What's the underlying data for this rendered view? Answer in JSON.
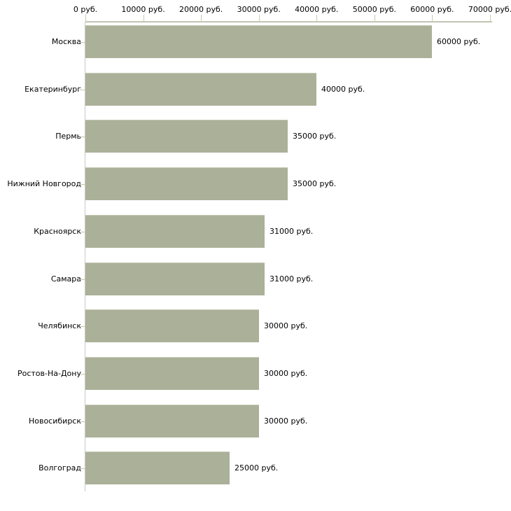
{
  "chart_data": {
    "type": "bar",
    "orientation": "horizontal",
    "title": "",
    "xlabel": "",
    "ylabel": "",
    "grid": false,
    "legend": false,
    "bar_color": "#abb199",
    "categories": [
      "Москва",
      "Екатеринбург",
      "Пермь",
      "Нижний Новгород",
      "Красноярск",
      "Самара",
      "Челябинск",
      "Ростов-На-Дону",
      "Новосибирск",
      "Волгоград"
    ],
    "values": [
      60000,
      40000,
      35000,
      35000,
      31000,
      31000,
      30000,
      30000,
      30000,
      25000
    ],
    "value_labels": [
      "60000 руб.",
      "40000 руб.",
      "35000 руб.",
      "35000 руб.",
      "31000 руб.",
      "31000 руб.",
      "30000 руб.",
      "30000 руб.",
      "30000 руб.",
      "25000 руб."
    ],
    "x_axis": {
      "position": "top",
      "lim": [
        0,
        70000
      ],
      "ticks": [
        0,
        10000,
        20000,
        30000,
        40000,
        50000,
        60000,
        70000
      ],
      "tick_labels": [
        "0 руб.",
        "10000 руб.",
        "20000 руб.",
        "30000 руб.",
        "40000 руб.",
        "50000 руб.",
        "60000 руб.",
        "70000 руб."
      ]
    },
    "unit_suffix": " руб."
  },
  "colors": {
    "background": "#ffffff",
    "bar": "#abb199",
    "axis_line": "#b2b2a4",
    "tick_mark": "#cbcba6",
    "left_axis_line": "#c9c9c9",
    "text": "#000000"
  }
}
